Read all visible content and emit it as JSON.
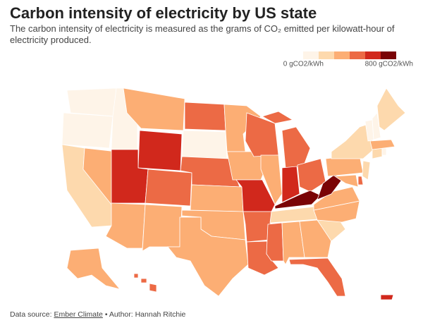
{
  "header": {
    "title": "Carbon intensity of electricity by US state",
    "subtitle": "The carbon intensity of electricity is measured as the grams of CO₂ emitted per kilowatt-hour of electricity produced."
  },
  "legend": {
    "colors": [
      "#fef4e8",
      "#fdd9ad",
      "#fcae74",
      "#ec6a45",
      "#d1281c",
      "#7a0406"
    ],
    "min_label": "0 gCO2/kWh",
    "max_label": "800 gCO2/kWh"
  },
  "map": {
    "regions": [
      0,
      0,
      1,
      2,
      0,
      2,
      4,
      4,
      3,
      2,
      2,
      3,
      0,
      3,
      2,
      2,
      2,
      2,
      2,
      4,
      3,
      3,
      3,
      2,
      3,
      4,
      3,
      5,
      1,
      3,
      2,
      2,
      3,
      1,
      2,
      2,
      5,
      2,
      1,
      2,
      3,
      1,
      1,
      0,
      2,
      0,
      0,
      1,
      2,
      3,
      4
    ]
  },
  "footer": {
    "source_prefix": "Data source:",
    "source": "Ember Climate",
    "author": "• Author: Hannah Ritchie"
  }
}
